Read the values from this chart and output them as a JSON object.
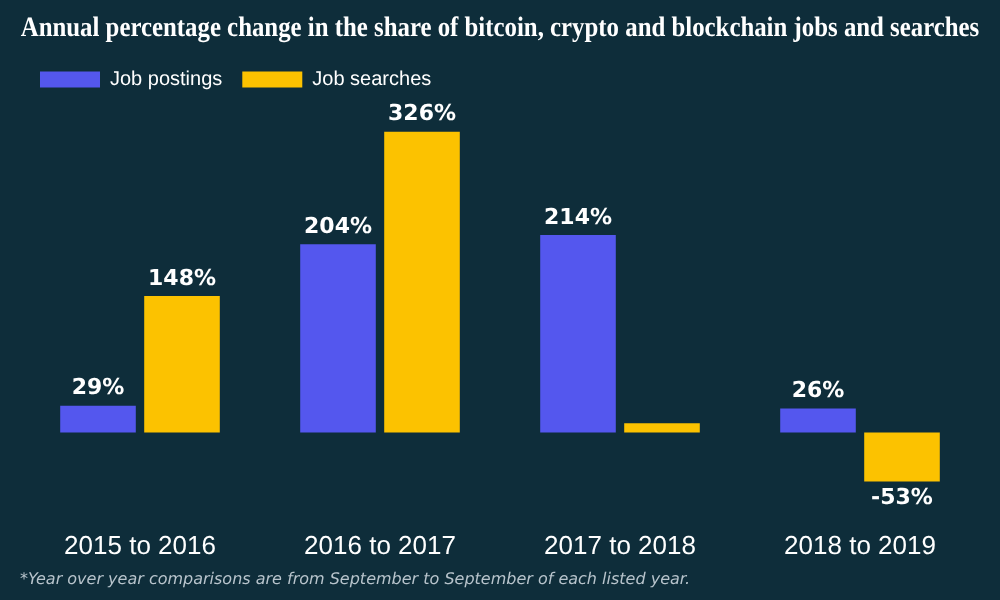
{
  "chart_data": {
    "type": "bar",
    "title": "Annual percentage change in the share of bitcoin, crypto and blockchain jobs and searches",
    "categories": [
      "2015 to 2016",
      "2016 to 2017",
      "2017 to 2018",
      "2018 to 2019"
    ],
    "series": [
      {
        "name": "Job postings",
        "color": "#5457ee",
        "values": [
          29,
          204,
          214,
          26
        ],
        "value_labels": [
          "29%",
          "204%",
          "214%",
          "26%"
        ]
      },
      {
        "name": "Job searches",
        "color": "#fcc200",
        "values": [
          148,
          326,
          10,
          -53
        ],
        "value_labels": [
          "148%",
          "326%",
          null,
          "-53%"
        ]
      }
    ],
    "grid": false,
    "legend": "top left",
    "tick_labels": "x",
    "annotations": [
      "*Year over year comparisons are from September to September of each listed year."
    ]
  }
}
